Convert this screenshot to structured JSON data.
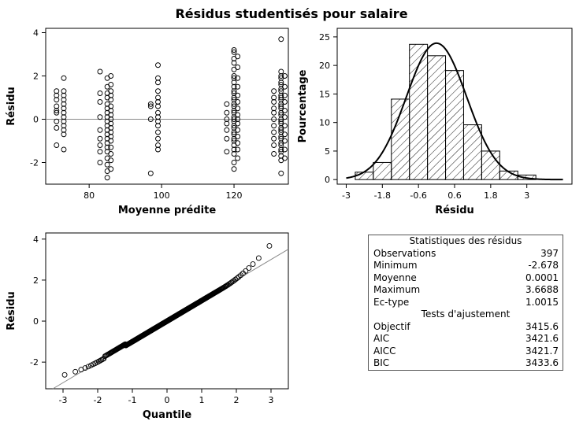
{
  "title": "Résidus studentisés pour salaire",
  "chart_data": [
    {
      "type": "scatter",
      "xlabel": "Moyenne prédite",
      "ylabel": "Résidu",
      "xlim": [
        68,
        135
      ],
      "ylim": [
        -3,
        4.2
      ],
      "xticks": [
        80,
        100,
        120
      ],
      "yticks": [
        -2,
        0,
        2,
        4
      ],
      "reference_line": {
        "y": 0
      },
      "groups": [
        {
          "x": 71,
          "y": [
            1.3,
            1.1,
            0.9,
            0.6,
            0.4,
            0.3,
            -0.1,
            -0.4,
            -1.2
          ]
        },
        {
          "x": 73,
          "y": [
            1.9,
            1.3,
            1.1,
            0.9,
            0.7,
            0.5,
            0.3,
            0.1,
            -0.1,
            -0.3,
            -0.5,
            -0.7,
            -1.4
          ]
        },
        {
          "x": 83,
          "y": [
            2.2,
            1.2,
            0.8,
            0.1,
            -0.5,
            -0.9,
            -1.2,
            -1.5,
            -2.0
          ]
        },
        {
          "x": 85,
          "y": [
            1.9,
            1.5,
            1.2,
            1.0,
            0.7,
            0.5,
            0.3,
            0.1,
            -0.1,
            -0.3,
            -0.5,
            -0.7,
            -0.9,
            -1.1,
            -1.3,
            -1.5,
            -1.8,
            -2.1,
            -2.4,
            -2.7
          ]
        },
        {
          "x": 86,
          "y": [
            2.0,
            1.6,
            1.3,
            1.1,
            0.9,
            0.6,
            0.4,
            0.2,
            0.0,
            -0.2,
            -0.4,
            -0.6,
            -0.8,
            -1.0,
            -1.3,
            -1.6,
            -1.9,
            -2.3
          ]
        },
        {
          "x": 97,
          "y": [
            0.7,
            0.6,
            0.0,
            -2.5
          ]
        },
        {
          "x": 99,
          "y": [
            2.5,
            1.9,
            1.7,
            1.3,
            1.0,
            0.8,
            0.6,
            0.3,
            0.1,
            -0.1,
            -0.3,
            -0.6,
            -0.9,
            -1.2,
            -1.4
          ]
        },
        {
          "x": 118,
          "y": [
            0.7,
            0.3,
            0.0,
            -0.2,
            -0.5,
            -0.9,
            -1.5
          ]
        },
        {
          "x": 120,
          "y": [
            3.2,
            3.1,
            2.8,
            2.6,
            2.3,
            2.0,
            1.9,
            1.7,
            1.5,
            1.3,
            1.2,
            1.0,
            0.9,
            0.7,
            0.6,
            0.4,
            0.3,
            0.1,
            0.0,
            -0.1,
            -0.3,
            -0.4,
            -0.6,
            -0.7,
            -0.9,
            -1.0,
            -1.2,
            -1.4,
            -1.6,
            -2.0,
            -2.3
          ]
        },
        {
          "x": 121,
          "y": [
            2.9,
            2.4,
            1.9,
            1.5,
            1.1,
            0.8,
            0.5,
            0.2,
            0.0,
            -0.2,
            -0.5,
            -0.8,
            -1.1,
            -1.4,
            -1.8
          ]
        },
        {
          "x": 131,
          "y": [
            1.3,
            1.0,
            0.8,
            0.5,
            0.3,
            0.0,
            -0.3,
            -0.6,
            -0.9,
            -1.2,
            -1.6
          ]
        },
        {
          "x": 133,
          "y": [
            3.7,
            2.2,
            2.0,
            1.9,
            1.7,
            1.6,
            1.4,
            1.3,
            1.1,
            1.0,
            0.9,
            0.7,
            0.6,
            0.5,
            0.3,
            0.2,
            0.0,
            -0.1,
            -0.2,
            -0.4,
            -0.5,
            -0.6,
            -0.8,
            -0.9,
            -1.1,
            -1.2,
            -1.4,
            -1.5,
            -1.7,
            -1.9,
            -2.5
          ]
        },
        {
          "x": 134,
          "y": [
            2.0,
            1.5,
            1.1,
            0.8,
            0.4,
            0.1,
            -0.3,
            -0.7,
            -1.0,
            -1.4,
            -1.8
          ]
        }
      ]
    },
    {
      "type": "bar",
      "histogram": true,
      "xlabel": "Résidu",
      "ylabel": "Pourcentage",
      "xlim": [
        -3.3,
        4.5
      ],
      "ylim": [
        -0.8,
        26.5
      ],
      "xticks": [
        "-3",
        "-1.8",
        "-0.6",
        "0.6",
        "1.8",
        "3"
      ],
      "xtick_values": [
        -3,
        -1.8,
        -0.6,
        0.6,
        1.8,
        3
      ],
      "yticks": [
        0,
        5,
        10,
        15,
        20,
        25
      ],
      "bins": [
        {
          "start": -2.7,
          "end": -2.1,
          "value": 1.3
        },
        {
          "start": -2.1,
          "end": -1.5,
          "value": 3.0
        },
        {
          "start": -1.5,
          "end": -0.9,
          "value": 14.1
        },
        {
          "start": -0.9,
          "end": -0.3,
          "value": 23.7
        },
        {
          "start": -0.3,
          "end": 0.3,
          "value": 21.7
        },
        {
          "start": 0.3,
          "end": 0.9,
          "value": 19.1
        },
        {
          "start": 0.9,
          "end": 1.5,
          "value": 9.6
        },
        {
          "start": 1.5,
          "end": 2.1,
          "value": 5.0
        },
        {
          "start": 2.1,
          "end": 2.7,
          "value": 1.5
        },
        {
          "start": 2.7,
          "end": 3.3,
          "value": 0.8
        }
      ],
      "normal_curve": {
        "mean": 0.0001,
        "sd": 1.0015,
        "bin_width": 0.6,
        "x_from": -3.0,
        "x_to": 4.2
      }
    },
    {
      "type": "scatter",
      "qq": true,
      "xlabel": "Quantile",
      "ylabel": "Résidu",
      "xlim": [
        -3.5,
        3.5
      ],
      "ylim": [
        -3.3,
        4.3
      ],
      "xticks": [
        -3,
        -2,
        -1,
        0,
        1,
        2,
        3
      ],
      "yticks": [
        -2,
        0,
        2,
        4
      ],
      "n": 397,
      "reference_line": {
        "intercept": 0.0001,
        "slope": 1.0015
      },
      "residual_range": [
        -2.678,
        3.6688
      ]
    }
  ],
  "stats_table": {
    "header1": "Statistiques des résidus",
    "header2": "Tests d'ajustement",
    "rows1": [
      {
        "label": "Observations",
        "value": "397"
      },
      {
        "label": "Minimum",
        "value": "-2.678"
      },
      {
        "label": "Moyenne",
        "value": "0.0001"
      },
      {
        "label": "Maximum",
        "value": "3.6688"
      },
      {
        "label": "Ec-type",
        "value": "1.0015"
      }
    ],
    "rows2": [
      {
        "label": "Objectif",
        "value": "3415.6"
      },
      {
        "label": "AIC",
        "value": "3421.6"
      },
      {
        "label": "AICC",
        "value": "3421.7"
      },
      {
        "label": "BIC",
        "value": "3433.6"
      }
    ]
  }
}
